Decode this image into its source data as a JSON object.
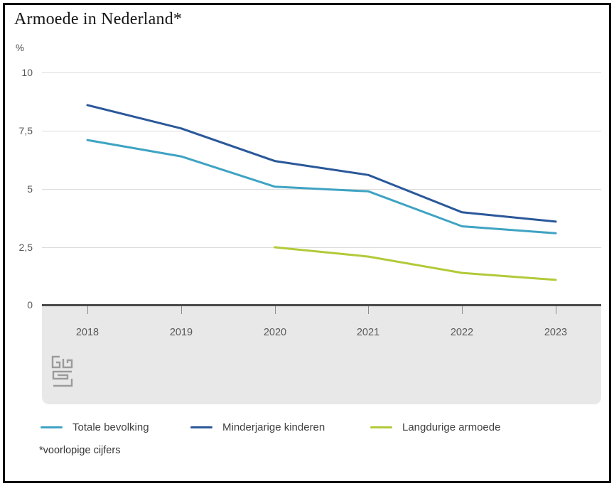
{
  "title": "Armoede in Nederland*",
  "footnote": "*voorlopige cijfers",
  "colors": {
    "totale_bevolking": "#3fa3c3",
    "minderjarige_kinderen": "#2a5899",
    "langdurige_armoede": "#b3c939",
    "gridline": "#dcdcdc",
    "axis": "#4a4a4a",
    "band": "#e8e8e8",
    "tick_text": "#595959"
  },
  "chart_data": {
    "type": "line",
    "title": "Armoede in Nederland*",
    "ylabel": "%",
    "xlabel": "",
    "ylim": [
      0,
      10
    ],
    "grid": true,
    "legend_position": "bottom",
    "x": [
      2018,
      2019,
      2020,
      2021,
      2022,
      2023
    ],
    "ytick_labels": [
      "10",
      "7,5",
      "5",
      "2,5",
      "0"
    ],
    "series": [
      {
        "name": "Totale bevolking",
        "color": "#3fa3c3",
        "values": [
          7.1,
          6.4,
          5.1,
          4.9,
          3.4,
          3.1
        ]
      },
      {
        "name": "Minderjarige kinderen",
        "color": "#2a5899",
        "values": [
          8.6,
          7.6,
          6.2,
          5.6,
          4.0,
          3.6
        ]
      },
      {
        "name": "Langdurige armoede",
        "color": "#b3c939",
        "values": [
          null,
          null,
          2.5,
          2.1,
          1.4,
          1.1
        ]
      }
    ]
  }
}
